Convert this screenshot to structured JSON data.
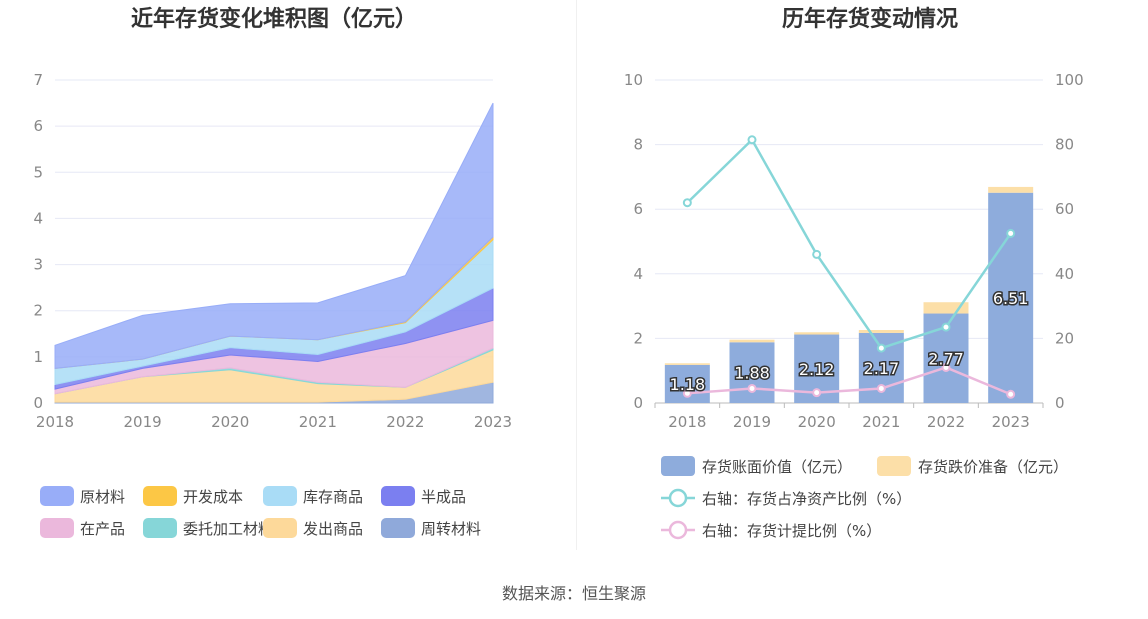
{
  "chart_data": [
    {
      "type": "area",
      "stacked": true,
      "title": "近年存货变化堆积图（亿元）",
      "categories": [
        "2018",
        "2019",
        "2020",
        "2021",
        "2022",
        "2023"
      ],
      "ylim": [
        0,
        7
      ],
      "yticks": [
        "0",
        "1",
        "2",
        "3",
        "4",
        "5",
        "6",
        "7"
      ],
      "grid": true,
      "legend_position": "bottom",
      "series": [
        {
          "name": "周转材料",
          "color": "#8fa9da",
          "values": [
            0.02,
            0.02,
            0.02,
            0.02,
            0.08,
            0.45
          ]
        },
        {
          "name": "发出商品",
          "color": "#fdd99a",
          "values": [
            0.18,
            0.55,
            0.7,
            0.4,
            0.26,
            0.7
          ]
        },
        {
          "name": "委托加工材料",
          "color": "#86d6d8",
          "values": [
            0.0,
            0.0,
            0.04,
            0.03,
            0.0,
            0.04
          ]
        },
        {
          "name": "在产品",
          "color": "#ebb8dc",
          "values": [
            0.1,
            0.18,
            0.28,
            0.45,
            0.95,
            0.6
          ]
        },
        {
          "name": "半成品",
          "color": "#7b7ff0",
          "values": [
            0.1,
            0.05,
            0.16,
            0.15,
            0.25,
            0.7
          ]
        },
        {
          "name": "库存商品",
          "color": "#a9dcf6",
          "values": [
            0.35,
            0.15,
            0.25,
            0.32,
            0.2,
            1.05
          ]
        },
        {
          "name": "开发成本",
          "color": "#fcc745",
          "values": [
            0.0,
            0.0,
            0.0,
            0.0,
            0.02,
            0.06
          ]
        },
        {
          "name": "原材料",
          "color": "#98adf8",
          "values": [
            0.5,
            0.95,
            0.7,
            0.8,
            1.0,
            2.9
          ]
        }
      ],
      "legend_order": [
        "原材料",
        "开发成本",
        "库存商品",
        "半成品",
        "在产品",
        "委托加工材料",
        "发出商品",
        "周转材料"
      ]
    },
    {
      "type": "bar",
      "title": "历年存货变动情况",
      "categories": [
        "2018",
        "2019",
        "2020",
        "2021",
        "2022",
        "2023"
      ],
      "ylim": [
        0,
        10
      ],
      "yticks": [
        "0",
        "2",
        "4",
        "6",
        "8",
        "10"
      ],
      "y2lim": [
        0,
        100
      ],
      "y2ticks": [
        "0",
        "20",
        "40",
        "60",
        "80",
        "100"
      ],
      "grid": true,
      "legend_position": "bottom",
      "series": [
        {
          "name": "存货账面价值（亿元）",
          "kind": "bar",
          "stack": "a",
          "color": "#8eacdc",
          "values": [
            1.18,
            1.88,
            2.12,
            2.17,
            2.77,
            6.51
          ],
          "labels": [
            "1.18",
            "1.88",
            "2.12",
            "2.17",
            "2.77",
            "6.51"
          ]
        },
        {
          "name": "存货跌价准备（亿元）",
          "kind": "bar",
          "stack": "a",
          "color": "#fcdfa8",
          "values": [
            0.05,
            0.08,
            0.07,
            0.09,
            0.35,
            0.18
          ]
        },
        {
          "name": "右轴：存货占净资产比例（%）",
          "kind": "line",
          "axis": "right",
          "color": "#86d6d8",
          "values": [
            62.0,
            81.5,
            46.0,
            17.0,
            23.5,
            52.5
          ]
        },
        {
          "name": "右轴：存货计提比例（%）",
          "kind": "line",
          "axis": "right",
          "color": "#ebb8dc",
          "values": [
            3.0,
            4.5,
            3.2,
            4.5,
            11.0,
            2.7
          ]
        }
      ]
    }
  ],
  "source": "数据来源：恒生聚源"
}
